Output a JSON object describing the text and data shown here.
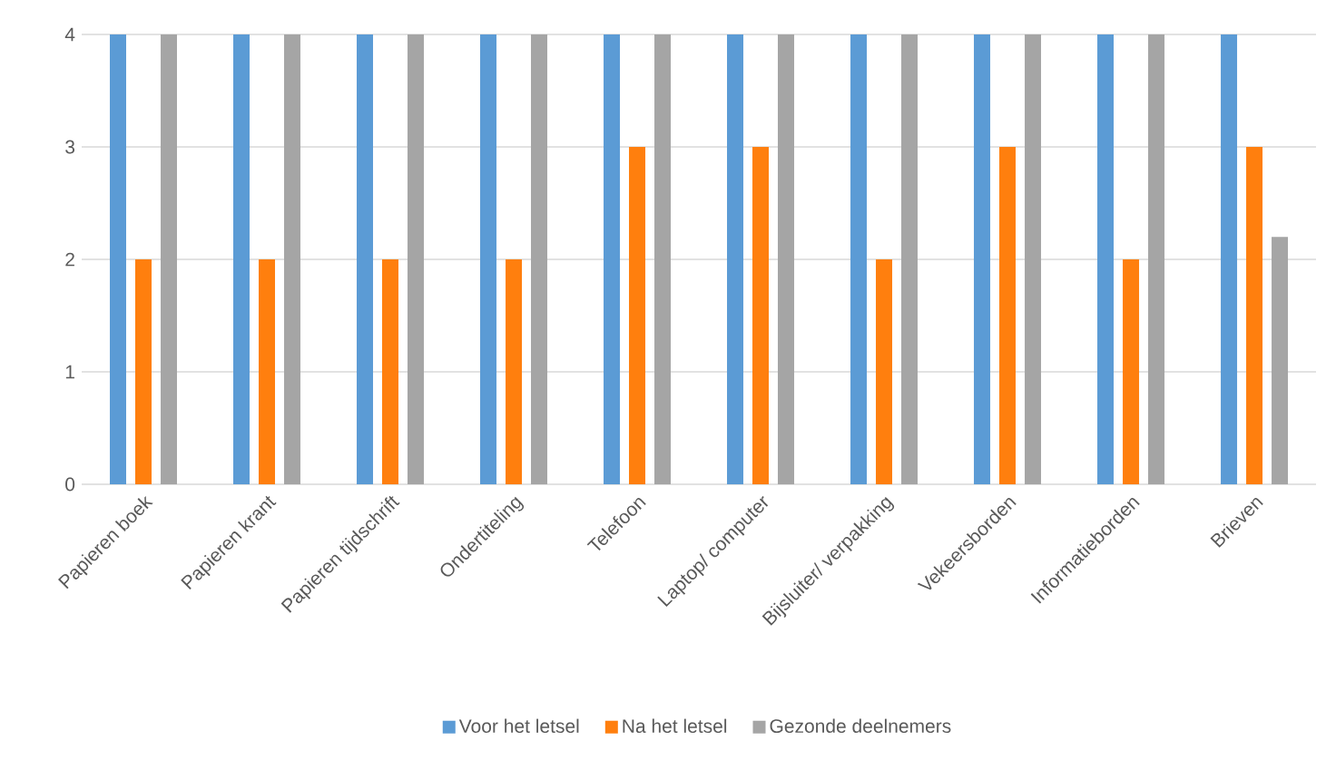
{
  "chart_data": {
    "type": "bar",
    "categories": [
      "Papieren boek",
      "Papieren krant",
      "Papieren tijdschrift",
      "Ondertiteling",
      "Telefoon",
      "Laptop/ computer",
      "Bijsluiter/ verpakking",
      "Vekeersborden",
      "Informatieborden",
      "Brieven"
    ],
    "series": [
      {
        "name": "Voor het letsel",
        "color": "#5b9bd5",
        "values": [
          4,
          4,
          4,
          4,
          4,
          4,
          4,
          4,
          4,
          4
        ]
      },
      {
        "name": "Na het letsel",
        "color": "#ff7f0e",
        "values": [
          2,
          2,
          2,
          2,
          3,
          3,
          2,
          3,
          2,
          3
        ]
      },
      {
        "name": "Gezonde deelnemers",
        "color": "#a5a5a5",
        "values": [
          4,
          4,
          4,
          4,
          4,
          4,
          4,
          4,
          4,
          2.2
        ]
      }
    ],
    "ylim": [
      0,
      4
    ],
    "yticks": [
      0,
      1,
      2,
      3,
      4
    ],
    "grid": "y",
    "legend": "bottom"
  }
}
